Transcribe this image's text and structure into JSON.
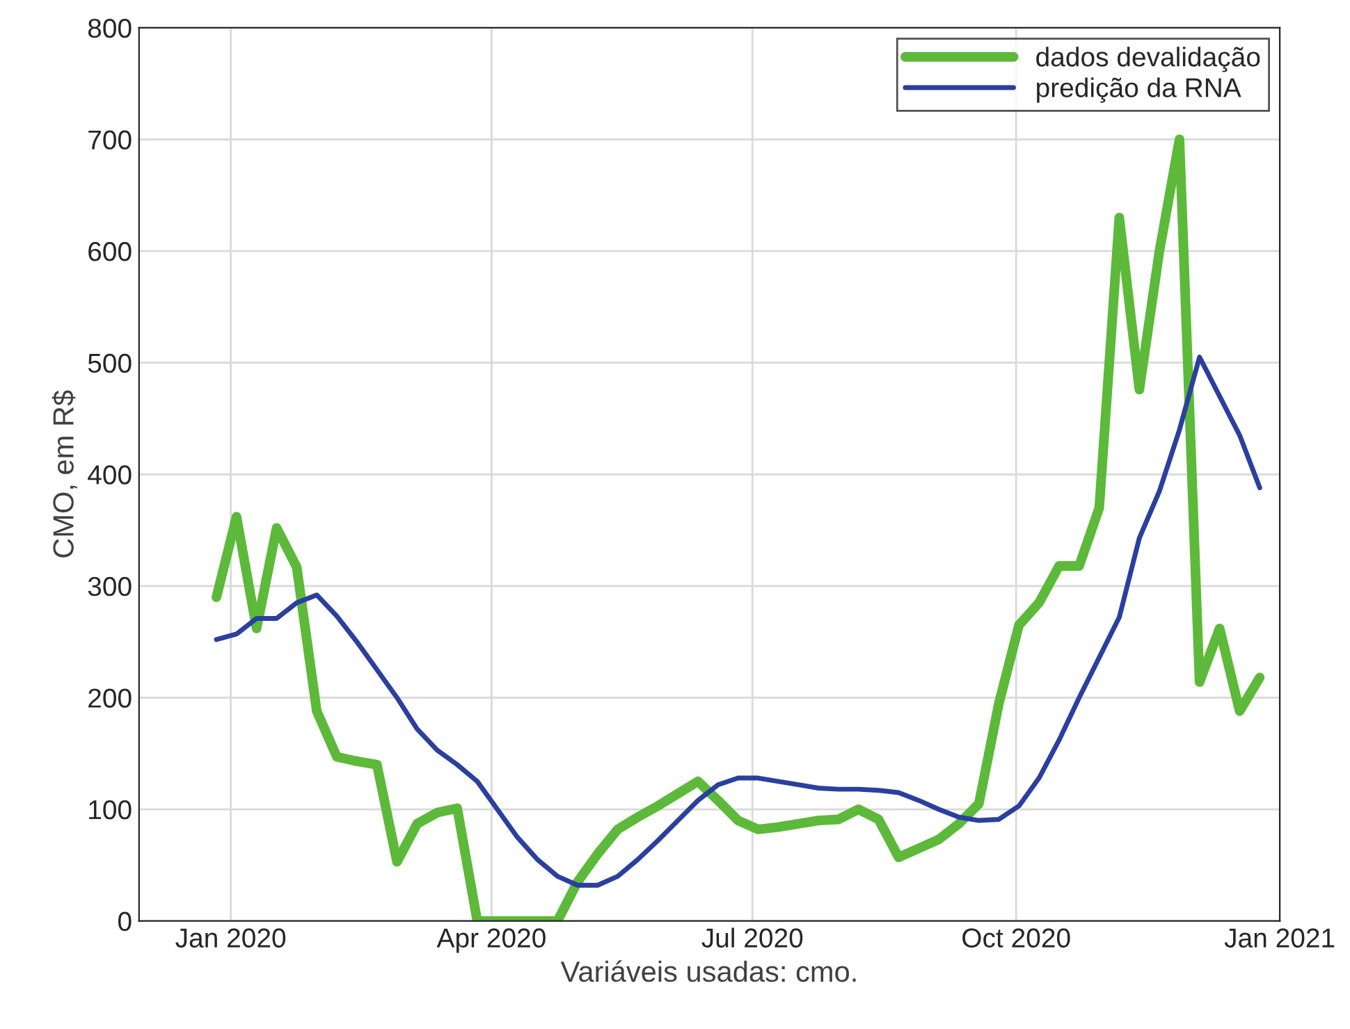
{
  "chart_data": {
    "type": "line",
    "xlabel": "Variáveis usadas: cmo.",
    "ylabel": "CMO, em R$",
    "x": [
      "2019-12-27",
      "2020-01-03",
      "2020-01-10",
      "2020-01-17",
      "2020-01-24",
      "2020-01-31",
      "2020-02-07",
      "2020-02-14",
      "2020-02-21",
      "2020-02-28",
      "2020-03-06",
      "2020-03-13",
      "2020-03-20",
      "2020-03-27",
      "2020-04-03",
      "2020-04-10",
      "2020-04-17",
      "2020-04-24",
      "2020-05-01",
      "2020-05-08",
      "2020-05-15",
      "2020-05-22",
      "2020-05-29",
      "2020-06-05",
      "2020-06-12",
      "2020-06-19",
      "2020-06-26",
      "2020-07-03",
      "2020-07-10",
      "2020-07-17",
      "2020-07-24",
      "2020-07-31",
      "2020-08-07",
      "2020-08-14",
      "2020-08-21",
      "2020-08-28",
      "2020-09-04",
      "2020-09-11",
      "2020-09-18",
      "2020-09-25",
      "2020-10-02",
      "2020-10-09",
      "2020-10-16",
      "2020-10-23",
      "2020-10-30",
      "2020-11-06",
      "2020-11-13",
      "2020-11-20",
      "2020-11-27",
      "2020-12-04",
      "2020-12-11",
      "2020-12-18",
      "2020-12-25"
    ],
    "series": [
      {
        "name": "dados devalidação",
        "color": "#5cb93a",
        "values": [
          290,
          362,
          262,
          352,
          317,
          188,
          147,
          143,
          140,
          53,
          87,
          97,
          101,
          0,
          0,
          0,
          0,
          0,
          35,
          60,
          82,
          93,
          103,
          114,
          125,
          108,
          90,
          82,
          84,
          87,
          90,
          91,
          100,
          91,
          57,
          65,
          73,
          87,
          105,
          195,
          265,
          285,
          318,
          318,
          370,
          630,
          476,
          600,
          700,
          214,
          262,
          188,
          218
        ]
      },
      {
        "name": "predição da RNA",
        "color": "#2b3f9e",
        "values": [
          252,
          257,
          271,
          271,
          285,
          292,
          273,
          250,
          225,
          200,
          172,
          153,
          140,
          125,
          100,
          75,
          55,
          40,
          32,
          32,
          40,
          55,
          72,
          90,
          108,
          122,
          128,
          128,
          125,
          122,
          119,
          118,
          118,
          117,
          115,
          108,
          100,
          93,
          90,
          91,
          103,
          128,
          162,
          200,
          236,
          272,
          343,
          385,
          440,
          505,
          470,
          435,
          388
        ]
      }
    ],
    "xlim": [
      "2019-11-30",
      "2021-01-01"
    ],
    "xticks": [
      {
        "value": "2020-01-01",
        "label": "Jan 2020"
      },
      {
        "value": "2020-04-01",
        "label": "Apr 2020"
      },
      {
        "value": "2020-07-01",
        "label": "Jul 2020"
      },
      {
        "value": "2020-10-01",
        "label": "Oct 2020"
      },
      {
        "value": "2021-01-01",
        "label": "Jan 2021"
      }
    ],
    "ylim": [
      0,
      800
    ],
    "yticks": [
      0,
      100,
      200,
      300,
      400,
      500,
      600,
      700,
      800
    ],
    "grid": true,
    "legend": "top right",
    "marker": "none",
    "line_style": "solid"
  }
}
